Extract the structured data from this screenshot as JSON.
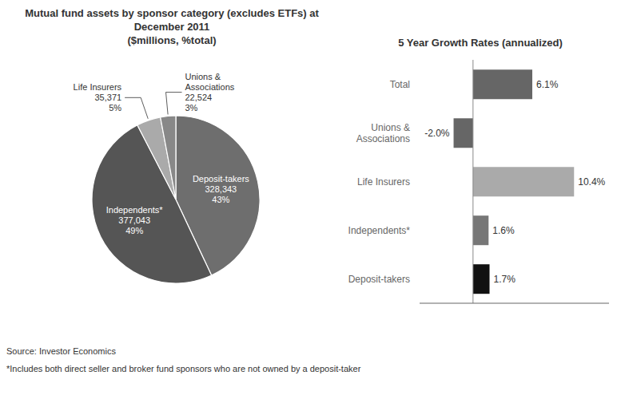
{
  "chart_data": [
    {
      "type": "pie",
      "title": "Mutual fund assets by sponsor category (excludes ETFs) at December 2011",
      "subtitle": "($millions, %total)",
      "categories": [
        "Deposit-takers",
        "Independents*",
        "Life Insurers",
        "Unions &\nAssociations"
      ],
      "values": [
        328343,
        377043,
        35371,
        22524
      ],
      "value_labels": [
        "328,343",
        "377,043",
        "35,371",
        "22,524"
      ],
      "shares": [
        43,
        49,
        5,
        3
      ],
      "share_labels": [
        "43%",
        "49%",
        "5%",
        "3%"
      ],
      "colors": [
        "#6e6e6e",
        "#555555",
        "#aaaaaa",
        "#888888"
      ],
      "data_labels": true,
      "annotations": [
        "Source: Investor Economics",
        "*Includes both direct seller and broker fund sponsors who are not owned by a deposit-taker"
      ]
    },
    {
      "type": "bar",
      "orientation": "horizontal",
      "title": "5 Year Growth Rates (annualized)",
      "categories": [
        "Total",
        "Unions &\nAssociations",
        "Life Insurers",
        "Independents*",
        "Deposit-takers"
      ],
      "values": [
        6.1,
        -2.0,
        10.4,
        1.6,
        1.7
      ],
      "value_labels": [
        "6.1%",
        "-2.0%",
        "10.4%",
        "1.6%",
        "1.7%"
      ],
      "colors": [
        "#666666",
        "#666666",
        "#aaaaaa",
        "#777777",
        "#111111"
      ],
      "xlim": [
        -5.5,
        14
      ],
      "grid": false,
      "data_labels": true,
      "tick_labels": "y"
    }
  ]
}
